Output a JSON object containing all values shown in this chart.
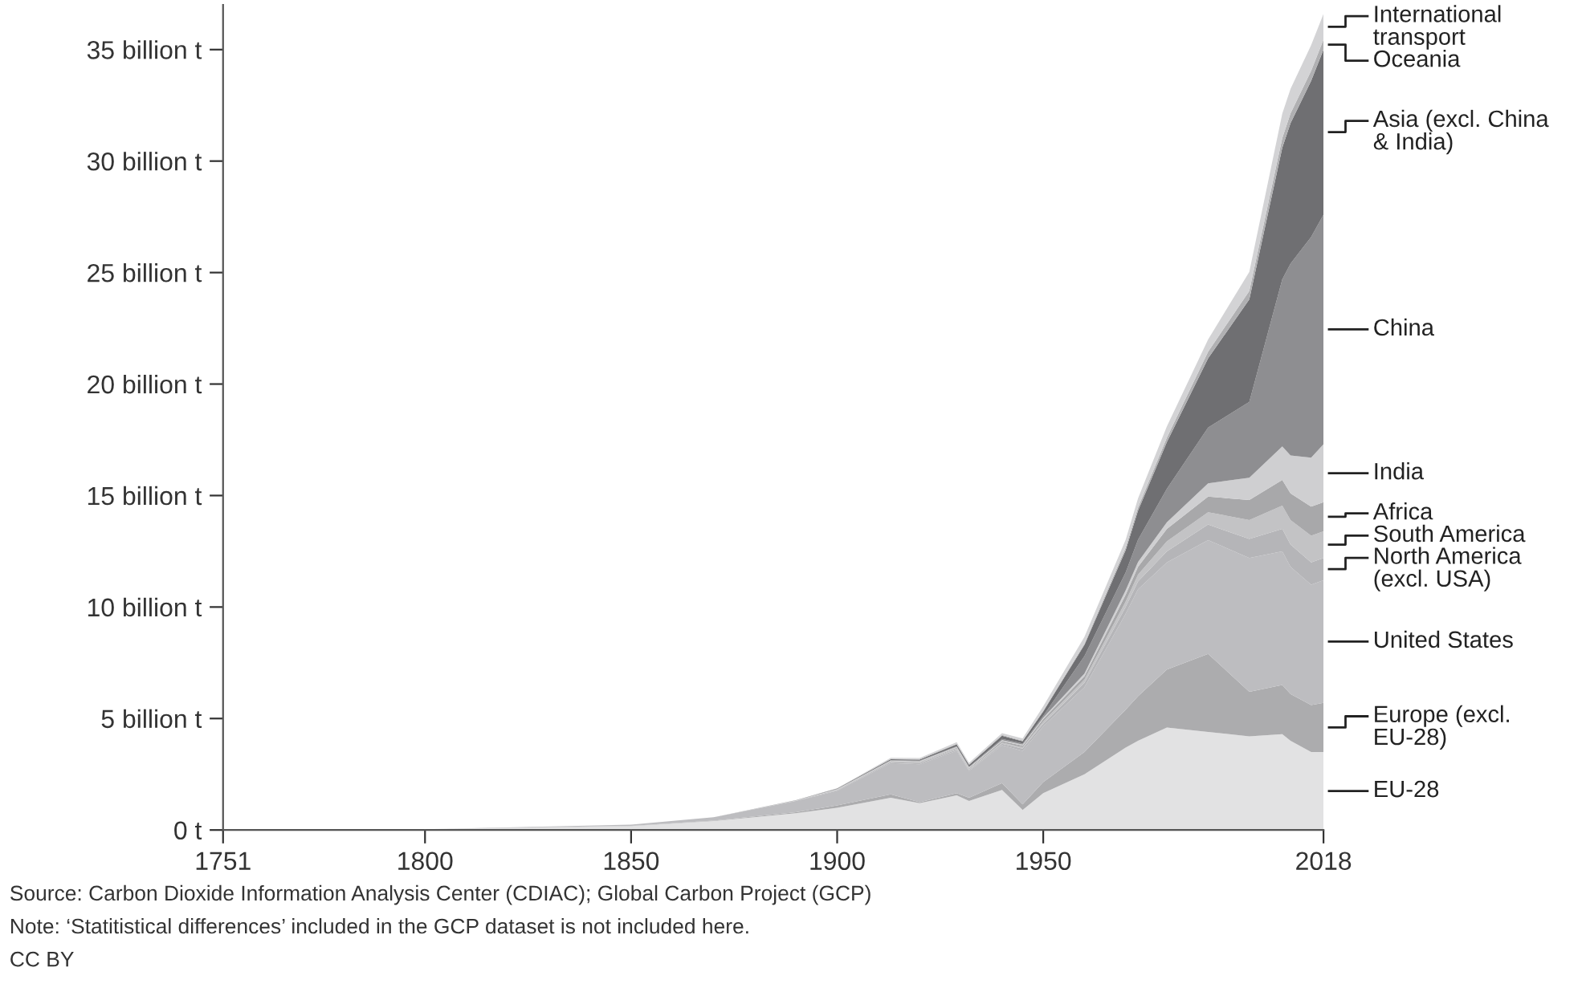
{
  "chart_data": {
    "type": "area",
    "stacked": true,
    "x": [
      1751,
      1800,
      1850,
      1870,
      1890,
      1900,
      1913,
      1920,
      1929,
      1932,
      1940,
      1945,
      1950,
      1960,
      1970,
      1973,
      1980,
      1990,
      2000,
      2008,
      2010,
      2015,
      2018
    ],
    "series": [
      {
        "name": "EU-28",
        "color": "#e2e2e3",
        "values": [
          0.01,
          0.03,
          0.18,
          0.4,
          0.75,
          1.0,
          1.45,
          1.2,
          1.55,
          1.3,
          1.8,
          0.9,
          1.65,
          2.5,
          3.7,
          4.0,
          4.6,
          4.4,
          4.2,
          4.3,
          4.0,
          3.5,
          3.5
        ]
      },
      {
        "name": "Europe (excl. EU-28)",
        "color": "#acacae",
        "values": [
          0,
          0,
          0.01,
          0.02,
          0.05,
          0.1,
          0.15,
          0.05,
          0.1,
          0.15,
          0.3,
          0.25,
          0.5,
          1.0,
          1.7,
          2.0,
          2.6,
          3.5,
          2.0,
          2.2,
          2.1,
          2.1,
          2.2
        ]
      },
      {
        "name": "United States",
        "color": "#bdbdc0",
        "values": [
          0,
          0,
          0.05,
          0.15,
          0.5,
          0.66,
          1.4,
          1.7,
          1.9,
          1.2,
          1.7,
          2.4,
          2.5,
          2.9,
          4.3,
          4.8,
          4.8,
          5.1,
          6.0,
          6.0,
          5.7,
          5.4,
          5.5
        ]
      },
      {
        "name": "North America (excl. USA)",
        "color": "#b5b5b8",
        "values": [
          0,
          0,
          0,
          0,
          0.01,
          0.03,
          0.05,
          0.05,
          0.06,
          0.05,
          0.07,
          0.1,
          0.12,
          0.2,
          0.3,
          0.35,
          0.5,
          0.7,
          0.85,
          1.0,
          1.0,
          1.0,
          1.0
        ]
      },
      {
        "name": "South America",
        "color": "#c3c3c5",
        "values": [
          0,
          0,
          0,
          0,
          0.01,
          0.01,
          0.02,
          0.03,
          0.04,
          0.03,
          0.05,
          0.06,
          0.1,
          0.15,
          0.25,
          0.3,
          0.45,
          0.55,
          0.85,
          1.05,
          1.1,
          1.2,
          1.2
        ]
      },
      {
        "name": "Africa",
        "color": "#a8a8aa",
        "values": [
          0,
          0,
          0,
          0,
          0,
          0.01,
          0.02,
          0.03,
          0.04,
          0.04,
          0.06,
          0.07,
          0.1,
          0.15,
          0.3,
          0.35,
          0.55,
          0.7,
          0.9,
          1.15,
          1.2,
          1.3,
          1.3
        ]
      },
      {
        "name": "India",
        "color": "#cfcfd1",
        "values": [
          0,
          0,
          0,
          0,
          0.01,
          0.02,
          0.03,
          0.03,
          0.04,
          0.04,
          0.05,
          0.05,
          0.07,
          0.12,
          0.2,
          0.22,
          0.3,
          0.6,
          1.0,
          1.5,
          1.7,
          2.2,
          2.6
        ]
      },
      {
        "name": "China",
        "color": "#8e8e91",
        "values": [
          0,
          0,
          0,
          0,
          0,
          0.01,
          0.01,
          0.02,
          0.03,
          0.03,
          0.05,
          0.05,
          0.08,
          0.78,
          0.8,
          1.0,
          1.5,
          2.5,
          3.4,
          7.5,
          8.6,
          9.9,
          10.3
        ]
      },
      {
        "name": "Asia (excl. China & India)",
        "color": "#6f6f72",
        "values": [
          0,
          0,
          0,
          0,
          0.01,
          0.02,
          0.04,
          0.05,
          0.08,
          0.08,
          0.15,
          0.1,
          0.2,
          0.5,
          1.0,
          1.3,
          2.1,
          3.1,
          4.6,
          5.9,
          6.3,
          7.0,
          7.4
        ]
      },
      {
        "name": "Oceania",
        "color": "#b0b0b2",
        "values": [
          0,
          0,
          0,
          0,
          0,
          0.01,
          0.02,
          0.02,
          0.03,
          0.03,
          0.03,
          0.03,
          0.03,
          0.06,
          0.12,
          0.15,
          0.2,
          0.3,
          0.38,
          0.43,
          0.44,
          0.45,
          0.45
        ]
      },
      {
        "name": "International transport",
        "color": "#d3d3d5",
        "values": [
          0,
          0,
          0,
          0,
          0,
          0,
          0.05,
          0.05,
          0.07,
          0.06,
          0.08,
          0.1,
          0.2,
          0.3,
          0.35,
          0.4,
          0.5,
          0.55,
          0.85,
          1.1,
          1.1,
          1.15,
          1.15
        ]
      }
    ],
    "xlim": [
      1751,
      2018
    ],
    "xticks": [
      1751,
      1800,
      1850,
      1900,
      1950,
      2018
    ],
    "ylim": [
      0,
      37
    ],
    "yticks": [
      {
        "value": 0,
        "label": "0 t"
      },
      {
        "value": 5,
        "label": "5 billion t"
      },
      {
        "value": 10,
        "label": "10 billion t"
      },
      {
        "value": 15,
        "label": "15 billion t"
      },
      {
        "value": 20,
        "label": "20 billion t"
      },
      {
        "value": 25,
        "label": "25 billion t"
      },
      {
        "value": 30,
        "label": "30 billion t"
      },
      {
        "value": 35,
        "label": "35 billion t"
      }
    ],
    "grid": false,
    "annotations": [
      "Source: Carbon Dioxide Information Analysis Center (CDIAC); Global Carbon Project (GCP)",
      "Note: ‘Statitistical differences’ included in the GCP dataset is not included here.",
      "CC BY"
    ]
  }
}
